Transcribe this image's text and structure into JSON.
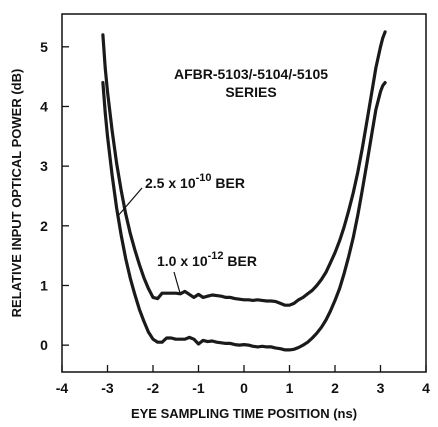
{
  "chart_data": {
    "type": "line",
    "title": "AFBR-5103/-5104/-5105",
    "subtitle": "SERIES",
    "xlabel": "EYE SAMPLING TIME POSITION (ns)",
    "ylabel": "RELATIVE INPUT OPTICAL POWER (dB)",
    "xlim": [
      -4,
      4
    ],
    "ylim": [
      -0.45,
      5.55
    ],
    "xticks": [
      "-4",
      "-3",
      "-2",
      "-1",
      "0",
      "1",
      "2",
      "3",
      "4"
    ],
    "yticks": [
      "0",
      "1",
      "2",
      "3",
      "4",
      "5"
    ],
    "grid": false,
    "series": [
      {
        "label": {
          "base": "2.5 x 10",
          "exp": "-10",
          "unit": " BER"
        },
        "x": [
          -3.1,
          -3.05,
          -3.0,
          -2.9,
          -2.8,
          -2.7,
          -2.6,
          -2.5,
          -2.4,
          -2.3,
          -2.2,
          -2.1,
          -2.0,
          -1.9,
          -1.8,
          -1.7,
          -1.6,
          -1.5,
          -1.4,
          -1.3,
          -1.2,
          -1.1,
          -1.0,
          -0.9,
          -0.8,
          -0.7,
          -0.6,
          -0.5,
          -0.4,
          -0.3,
          -0.2,
          -0.1,
          0.0,
          0.1,
          0.2,
          0.3,
          0.4,
          0.5,
          0.6,
          0.7,
          0.8,
          0.9,
          1.0,
          1.1,
          1.2,
          1.3,
          1.4,
          1.5,
          1.6,
          1.7,
          1.8,
          1.9,
          2.0,
          2.1,
          2.2,
          2.3,
          2.4,
          2.5,
          2.6,
          2.7,
          2.8,
          2.9,
          3.0,
          3.05,
          3.1
        ],
        "y": [
          5.2,
          4.65,
          4.25,
          3.6,
          3.05,
          2.6,
          2.2,
          1.87,
          1.6,
          1.35,
          1.13,
          0.95,
          0.8,
          0.78,
          0.87,
          0.87,
          0.87,
          0.87,
          0.86,
          0.9,
          0.85,
          0.8,
          0.85,
          0.8,
          0.82,
          0.84,
          0.83,
          0.82,
          0.8,
          0.8,
          0.78,
          0.77,
          0.76,
          0.76,
          0.75,
          0.76,
          0.75,
          0.74,
          0.74,
          0.73,
          0.7,
          0.67,
          0.67,
          0.7,
          0.76,
          0.8,
          0.86,
          0.92,
          1.0,
          1.1,
          1.22,
          1.38,
          1.55,
          1.75,
          1.98,
          2.25,
          2.55,
          2.9,
          3.3,
          3.75,
          4.2,
          4.65,
          5.0,
          5.15,
          5.25
        ]
      },
      {
        "label": {
          "base": "1.0 x 10",
          "exp": "-12",
          "unit": " BER"
        },
        "x": [
          -3.1,
          -3.05,
          -3.0,
          -2.9,
          -2.8,
          -2.7,
          -2.6,
          -2.5,
          -2.4,
          -2.3,
          -2.2,
          -2.1,
          -2.0,
          -1.9,
          -1.8,
          -1.7,
          -1.6,
          -1.5,
          -1.4,
          -1.3,
          -1.2,
          -1.1,
          -1.0,
          -0.9,
          -0.8,
          -0.7,
          -0.6,
          -0.5,
          -0.4,
          -0.3,
          -0.2,
          -0.1,
          0.0,
          0.1,
          0.2,
          0.3,
          0.4,
          0.5,
          0.6,
          0.7,
          0.8,
          0.9,
          1.0,
          1.1,
          1.2,
          1.3,
          1.4,
          1.5,
          1.6,
          1.7,
          1.8,
          1.9,
          2.0,
          2.1,
          2.2,
          2.3,
          2.4,
          2.5,
          2.6,
          2.7,
          2.8,
          2.9,
          3.0,
          3.05,
          3.1
        ],
        "y": [
          4.4,
          3.9,
          3.5,
          2.85,
          2.3,
          1.85,
          1.45,
          1.12,
          0.85,
          0.6,
          0.4,
          0.22,
          0.1,
          0.05,
          0.05,
          0.12,
          0.12,
          0.1,
          0.1,
          0.1,
          0.13,
          0.1,
          0.02,
          0.08,
          0.06,
          0.07,
          0.05,
          0.04,
          0.03,
          0.03,
          0.01,
          0.0,
          0.01,
          0.0,
          -0.02,
          -0.03,
          -0.02,
          -0.03,
          -0.03,
          -0.05,
          -0.06,
          -0.08,
          -0.08,
          -0.07,
          -0.04,
          0.0,
          0.05,
          0.12,
          0.2,
          0.3,
          0.42,
          0.57,
          0.75,
          0.95,
          1.2,
          1.48,
          1.8,
          2.18,
          2.6,
          3.05,
          3.5,
          3.95,
          4.25,
          4.35,
          4.4
        ]
      }
    ]
  }
}
